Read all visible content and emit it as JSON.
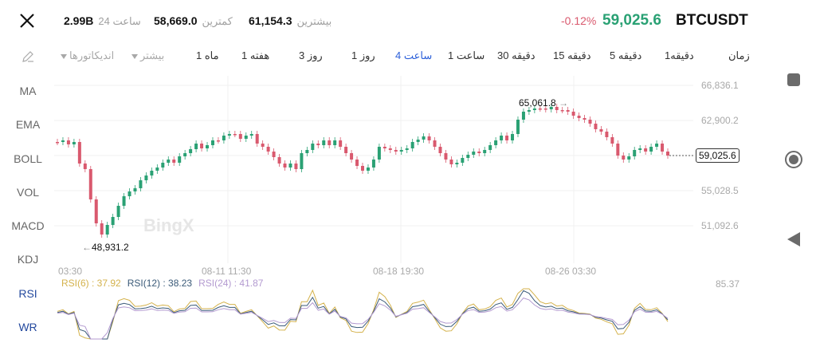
{
  "header": {
    "symbol": "BTCUSDT",
    "last_price": "59,025.6",
    "change_pct": "-0.12%",
    "high_label": "بیشترین",
    "high_value": "61,154.3",
    "low_label": "کمترین",
    "low_value": "58,669.0",
    "vol_label": "24 ساعت",
    "vol_value": "2.99B"
  },
  "toolbar": {
    "time_label": "زمان",
    "intervals": [
      {
        "label": "1دقیقه",
        "active": false
      },
      {
        "label": "5 دقیقه",
        "active": false
      },
      {
        "label": "15 دقیقه",
        "active": false
      },
      {
        "label": "30 دقیقه",
        "active": false
      },
      {
        "label": "1 ساعت",
        "active": false
      },
      {
        "label": "4 ساعت",
        "active": true
      },
      {
        "label": "1 روز",
        "active": false
      },
      {
        "label": "3 روز",
        "active": false
      },
      {
        "label": "1 هفته",
        "active": false
      },
      {
        "label": "1 ماه",
        "active": false
      }
    ],
    "more_label": "بیشتر",
    "indicators_label": "اندیکاتورها"
  },
  "side_indicators": [
    "MA",
    "EMA",
    "BOLL",
    "VOL",
    "MACD",
    "KDJ",
    "RSI",
    "WR"
  ],
  "chart": {
    "watermark": "BingX",
    "y_axis": [
      "66,836.1",
      "62,900.2",
      "59,025.6",
      "55,028.5",
      "51,092.6"
    ],
    "x_axis": [
      "03:30",
      "08-11 11:30",
      "08-18 19:30",
      "08-26 03:30"
    ],
    "high_annotation": "65,061.8",
    "low_annotation": "48,931.2",
    "last_price_tag": "59,025.6",
    "colors": {
      "up": "#2aa174",
      "down": "#d9596e",
      "active": "#2b5fd9"
    }
  },
  "rsi": {
    "rsi6": "RSI(6) : 37.92",
    "rsi12": "RSI(12) : 38.23",
    "rsi24": "RSI(24) : 41.87",
    "y_top": "85.37",
    "colors": {
      "rsi6": "#d4b24c",
      "rsi12": "#3a5a78",
      "rsi24": "#b39ad0"
    }
  },
  "nav": {
    "recent": "square-icon",
    "home": "circle-icon",
    "back": "triangle-icon"
  }
}
